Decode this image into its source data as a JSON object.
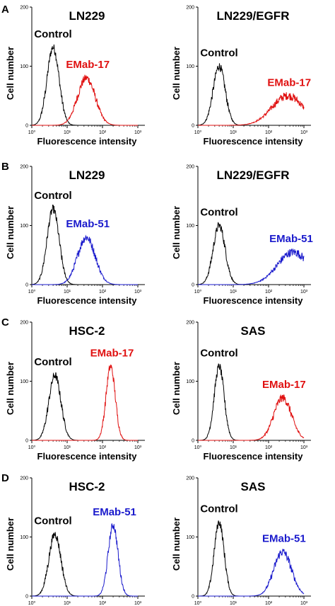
{
  "panel_letters": [
    "A",
    "B",
    "C",
    "D"
  ],
  "colors": {
    "control": "#000000",
    "red": "#e01010",
    "blue": "#1a1acc"
  },
  "chart_data": [
    {
      "type": "histogram",
      "panel": "A",
      "title": "LN229",
      "xlabel": "Fluorescence intensity",
      "ylabel": "Cell number",
      "xscale": "log",
      "xlim": [
        1,
        1000
      ],
      "ylim": [
        0,
        200
      ],
      "yticks": [
        "0",
        "100",
        "200"
      ],
      "xticks": [
        "10⁰",
        "10¹",
        "10²",
        "10³"
      ],
      "series": [
        {
          "name": "Control",
          "color": "#000000",
          "peak_x": 4.0,
          "peak_y": 132,
          "spread_log": 0.17
        },
        {
          "name": "EMab-17",
          "color": "#e01010",
          "peak_x": 35,
          "peak_y": 80,
          "spread_log": 0.25
        }
      ]
    },
    {
      "type": "histogram",
      "panel": "A",
      "title": "LN229/EGFR",
      "xlabel": "Fluorescence intensity",
      "ylabel": "Cell number",
      "xscale": "log",
      "xlim": [
        1,
        1000
      ],
      "ylim": [
        0,
        200
      ],
      "yticks": [
        "0",
        "100",
        "200"
      ],
      "xticks": [
        "10⁰",
        "10¹",
        "10²",
        "10³"
      ],
      "series": [
        {
          "name": "Control",
          "color": "#000000",
          "peak_x": 4.0,
          "peak_y": 100,
          "spread_log": 0.17
        },
        {
          "name": "EMab-17",
          "color": "#e01010",
          "peak_x": 350,
          "peak_y": 50,
          "spread_log": 0.45
        }
      ]
    },
    {
      "type": "histogram",
      "panel": "B",
      "title": "LN229",
      "xlabel": "Fluorescence intensity",
      "ylabel": "Cell number",
      "xscale": "log",
      "xlim": [
        1,
        1000
      ],
      "ylim": [
        0,
        200
      ],
      "yticks": [
        "0",
        "100",
        "200"
      ],
      "xticks": [
        "10⁰",
        "10¹",
        "10²",
        "10³"
      ],
      "series": [
        {
          "name": "Control",
          "color": "#000000",
          "peak_x": 4.0,
          "peak_y": 128,
          "spread_log": 0.17
        },
        {
          "name": "EMab-51",
          "color": "#1a1acc",
          "peak_x": 35,
          "peak_y": 80,
          "spread_log": 0.25
        }
      ]
    },
    {
      "type": "histogram",
      "panel": "B",
      "title": "LN229/EGFR",
      "xlabel": "Fluorescence intensity",
      "ylabel": "Cell number",
      "xscale": "log",
      "xlim": [
        1,
        1000
      ],
      "ylim": [
        0,
        200
      ],
      "yticks": [
        "0",
        "100",
        "200"
      ],
      "xticks": [
        "10⁰",
        "10¹",
        "10²",
        "10³"
      ],
      "series": [
        {
          "name": "Control",
          "color": "#000000",
          "peak_x": 4.0,
          "peak_y": 100,
          "spread_log": 0.17
        },
        {
          "name": "EMab-51",
          "color": "#1a1acc",
          "peak_x": 500,
          "peak_y": 55,
          "spread_log": 0.45
        }
      ]
    },
    {
      "type": "histogram",
      "panel": "C",
      "title": "HSC-2",
      "xlabel": "Fluorescence intensity",
      "ylabel": "Cell number",
      "xscale": "log",
      "xlim": [
        1,
        1000
      ],
      "ylim": [
        0,
        200
      ],
      "yticks": [
        "0",
        "100",
        "200"
      ],
      "xticks": [
        "10⁰",
        "10¹",
        "10²",
        "10³"
      ],
      "series": [
        {
          "name": "Control",
          "color": "#000000",
          "peak_x": 4.5,
          "peak_y": 110,
          "spread_log": 0.17
        },
        {
          "name": "EMab-17",
          "color": "#e01010",
          "peak_x": 170,
          "peak_y": 125,
          "spread_log": 0.13
        }
      ]
    },
    {
      "type": "histogram",
      "panel": "C",
      "title": "SAS",
      "xlabel": "Fluorescence intensity",
      "ylabel": "Cell number",
      "xscale": "log",
      "xlim": [
        1,
        1000
      ],
      "ylim": [
        0,
        200
      ],
      "yticks": [
        "0",
        "100",
        "200"
      ],
      "xticks": [
        "10⁰",
        "10¹",
        "10²",
        "10³"
      ],
      "series": [
        {
          "name": "Control",
          "color": "#000000",
          "peak_x": 4.0,
          "peak_y": 125,
          "spread_log": 0.14
        },
        {
          "name": "EMab-17",
          "color": "#e01010",
          "peak_x": 250,
          "peak_y": 72,
          "spread_log": 0.25
        }
      ]
    },
    {
      "type": "histogram",
      "panel": "D",
      "title": "HSC-2",
      "xlabel": "Fluorescence intensity",
      "ylabel": "Cell number",
      "xscale": "log",
      "xlim": [
        1,
        1000
      ],
      "ylim": [
        0,
        200
      ],
      "yticks": [
        "0",
        "100",
        "200"
      ],
      "xticks": [
        "10⁰",
        "10¹",
        "10²",
        "10³"
      ],
      "series": [
        {
          "name": "Control",
          "color": "#000000",
          "peak_x": 4.5,
          "peak_y": 105,
          "spread_log": 0.17
        },
        {
          "name": "EMab-51",
          "color": "#1a1acc",
          "peak_x": 200,
          "peak_y": 120,
          "spread_log": 0.14
        }
      ]
    },
    {
      "type": "histogram",
      "panel": "D",
      "title": "SAS",
      "xlabel": "Fluorescence intensity",
      "ylabel": "Cell number",
      "xscale": "log",
      "xlim": [
        1,
        1000
      ],
      "ylim": [
        0,
        200
      ],
      "yticks": [
        "0",
        "100",
        "200"
      ],
      "xticks": [
        "10⁰",
        "10¹",
        "10²",
        "10³"
      ],
      "series": [
        {
          "name": "Control",
          "color": "#000000",
          "peak_x": 4.0,
          "peak_y": 125,
          "spread_log": 0.14
        },
        {
          "name": "EMab-51",
          "color": "#1a1acc",
          "peak_x": 250,
          "peak_y": 75,
          "spread_log": 0.25
        }
      ]
    }
  ]
}
